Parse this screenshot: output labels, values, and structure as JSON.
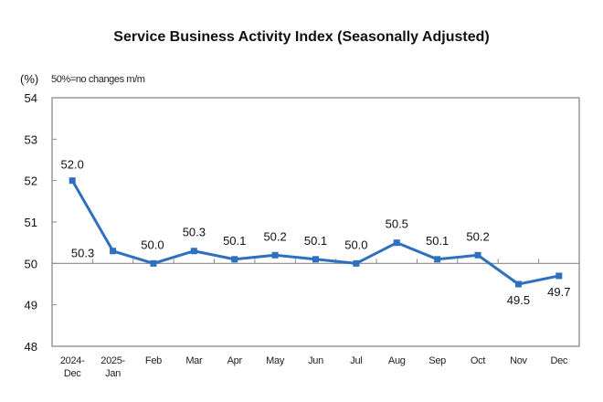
{
  "chart_data": {
    "type": "line",
    "title": "Service Business Activity Index (Seasonally Adjusted)",
    "unit_label": "(%)",
    "note": "50%=no changes m/m",
    "xlabel": "",
    "ylabel": "(%)",
    "ylim": [
      48,
      54
    ],
    "yticks": [
      48,
      49,
      50,
      51,
      52,
      53,
      54
    ],
    "reference_line": 50,
    "categories": [
      [
        "2024-",
        "Dec"
      ],
      [
        "2025-",
        "Jan"
      ],
      [
        "Feb"
      ],
      [
        "Mar"
      ],
      [
        "Apr"
      ],
      [
        "May"
      ],
      [
        "Jun"
      ],
      [
        "Jul"
      ],
      [
        "Aug"
      ],
      [
        "Sep"
      ],
      [
        "Oct"
      ],
      [
        "Nov"
      ],
      [
        "Dec"
      ]
    ],
    "series": [
      {
        "name": "Service Business Activity Index",
        "color": "#2e6fc0",
        "values": [
          52.0,
          50.3,
          50.0,
          50.3,
          50.1,
          50.2,
          50.1,
          50.0,
          50.5,
          50.1,
          50.2,
          49.5,
          49.7
        ]
      }
    ],
    "data_labels": [
      "52.0",
      "50.3",
      "50.0",
      "50.3",
      "50.1",
      "50.2",
      "50.1",
      "50.0",
      "50.5",
      "50.1",
      "50.2",
      "49.5",
      "49.7"
    ],
    "grid": false,
    "legend": "none"
  }
}
